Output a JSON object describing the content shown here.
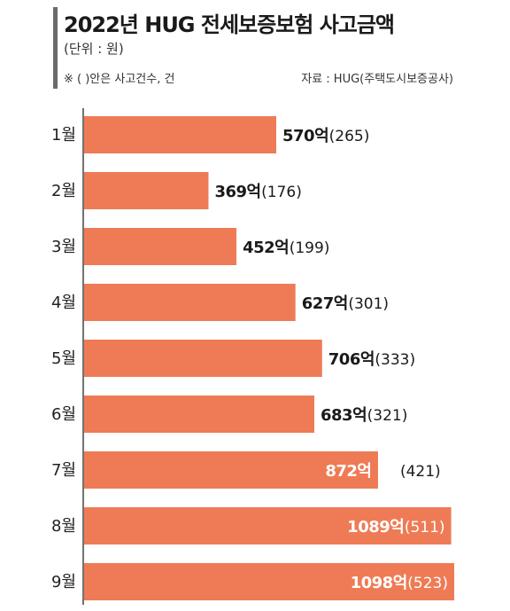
{
  "header": {
    "title": "2022년 HUG 전세보증보험 사고금액",
    "unit": "(단위 : 원)",
    "note": "※ (  )안은 사고건수, 건",
    "source": "자료 : HUG(주택도시보증공사)"
  },
  "colors": {
    "bar": "#ee7b55",
    "axis": "#444444",
    "accent": "#6b6b6b"
  },
  "chart_data": {
    "type": "bar",
    "orientation": "horizontal",
    "categories": [
      "1월",
      "2월",
      "3월",
      "4월",
      "5월",
      "6월",
      "7월",
      "8월",
      "9월"
    ],
    "series": [
      {
        "values": [
          570,
          369,
          452,
          627,
          706,
          683,
          872,
          1089,
          1098
        ]
      }
    ],
    "counts": [
      265,
      176,
      199,
      301,
      333,
      321,
      421,
      511,
      523
    ],
    "value_unit": "억",
    "grid": false,
    "legend": "none"
  }
}
